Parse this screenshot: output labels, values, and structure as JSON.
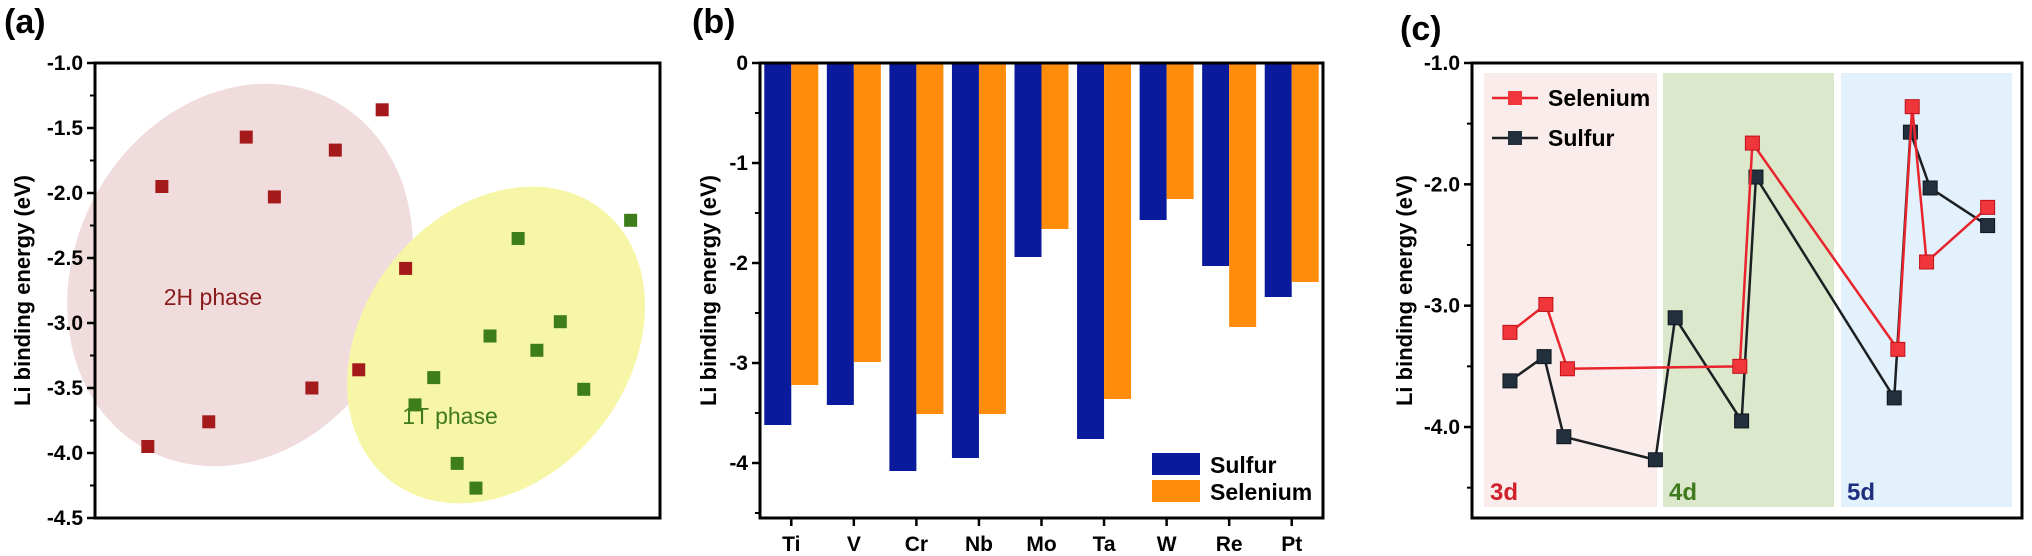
{
  "chart_data": [
    {
      "panel": "(a)",
      "type": "scatter",
      "ylabel": "Li binding energy (eV)",
      "ylim": [
        -4.5,
        -1.0
      ],
      "yticks": [
        "-1.0",
        "-1.5",
        "-2.0",
        "-2.5",
        "-3.0",
        "-3.5",
        "-4.0",
        "-4.5"
      ],
      "grid": false,
      "groups": [
        {
          "label": "2H phase",
          "color": "#a41a1a",
          "ellipse_color": "#f0dcdc",
          "label_color": "#8b1a1a",
          "points": [
            {
              "x": 0.07,
              "y": -3.95
            },
            {
              "x": 0.2,
              "y": -3.76
            },
            {
              "x": 0.28,
              "y": -1.57
            },
            {
              "x": 0.1,
              "y": -1.95
            },
            {
              "x": 0.34,
              "y": -2.03
            },
            {
              "x": 0.42,
              "y": -3.5
            },
            {
              "x": 0.47,
              "y": -1.67
            },
            {
              "x": 0.52,
              "y": -3.36
            },
            {
              "x": 0.57,
              "y": -1.36
            },
            {
              "x": 0.62,
              "y": -2.58
            }
          ]
        },
        {
          "label": "1T phase",
          "color": "#3d7d1a",
          "ellipse_color": "#f6f6a6",
          "label_color": "#3f7a1f",
          "points": [
            {
              "x": 0.64,
              "y": -3.63
            },
            {
              "x": 0.68,
              "y": -3.42
            },
            {
              "x": 0.73,
              "y": -4.08
            },
            {
              "x": 0.77,
              "y": -4.27
            },
            {
              "x": 0.8,
              "y": -3.1
            },
            {
              "x": 0.86,
              "y": -2.35
            },
            {
              "x": 0.9,
              "y": -3.21
            },
            {
              "x": 0.95,
              "y": -2.99
            },
            {
              "x": 1.0,
              "y": -3.51
            },
            {
              "x": 1.1,
              "y": -2.21
            }
          ]
        }
      ]
    },
    {
      "panel": "(b)",
      "type": "bar",
      "ylabel": "Li binding energy (eV)",
      "ylim": [
        -4.55,
        0
      ],
      "yticks": [
        "0",
        "-1",
        "-2",
        "-3",
        "-4"
      ],
      "categories": [
        "Ti",
        "V",
        "Cr",
        "Nb",
        "Mo",
        "Ta",
        "W",
        "Re",
        "Pt"
      ],
      "series": [
        {
          "name": "Sulfur",
          "color": "#0a1a9c",
          "values": [
            -3.62,
            -3.42,
            -4.08,
            -3.95,
            -1.94,
            -3.76,
            -1.57,
            -2.03,
            -2.34
          ]
        },
        {
          "name": "Selenium",
          "color": "#ff8c0a",
          "values": [
            -3.22,
            -2.99,
            -3.51,
            -3.51,
            -1.66,
            -3.36,
            -1.36,
            -2.64,
            -2.19
          ]
        }
      ],
      "legend": "bottom-right"
    },
    {
      "panel": "(c)",
      "type": "line",
      "ylabel": "Li binding energy (eV)",
      "ylim": [
        -4.75,
        -1.0
      ],
      "yticks": [
        "-1.0",
        "-2.0",
        "-3.0",
        "-4.0"
      ],
      "regions": [
        {
          "label": "3d",
          "color": "#fbecec",
          "text_color": "#d0212a"
        },
        {
          "label": "4d",
          "color": "#dbe8cc",
          "text_color": "#3f7a1f"
        },
        {
          "label": "5d",
          "color": "#e3f1fc",
          "text_color": "#1f2f7f"
        }
      ],
      "series": [
        {
          "name": "Selenium",
          "color": "#e8242c",
          "marker_color": "#f0353b",
          "points": [
            {
              "x": 0.5,
              "y": -3.22
            },
            {
              "x": 1.5,
              "y": -2.99
            },
            {
              "x": 2.1,
              "y": -3.52
            },
            {
              "x": 6.9,
              "y": -3.5
            },
            {
              "x": 7.25,
              "y": -1.66
            },
            {
              "x": 11.3,
              "y": -3.36
            },
            {
              "x": 11.7,
              "y": -1.36
            },
            {
              "x": 12.1,
              "y": -2.64
            },
            {
              "x": 13.8,
              "y": -2.19
            }
          ]
        },
        {
          "name": "Sulfur",
          "color": "#1c2023",
          "marker_color": "#22303e",
          "points": [
            {
              "x": 0.5,
              "y": -3.62
            },
            {
              "x": 1.45,
              "y": -3.42
            },
            {
              "x": 2.0,
              "y": -4.08
            },
            {
              "x": 4.55,
              "y": -4.27
            },
            {
              "x": 5.1,
              "y": -3.1
            },
            {
              "x": 6.95,
              "y": -3.95
            },
            {
              "x": 7.35,
              "y": -1.94
            },
            {
              "x": 11.2,
              "y": -3.76
            },
            {
              "x": 11.65,
              "y": -1.57
            },
            {
              "x": 12.2,
              "y": -2.03
            },
            {
              "x": 13.8,
              "y": -2.34
            }
          ]
        }
      ],
      "legend": "top-left"
    }
  ]
}
